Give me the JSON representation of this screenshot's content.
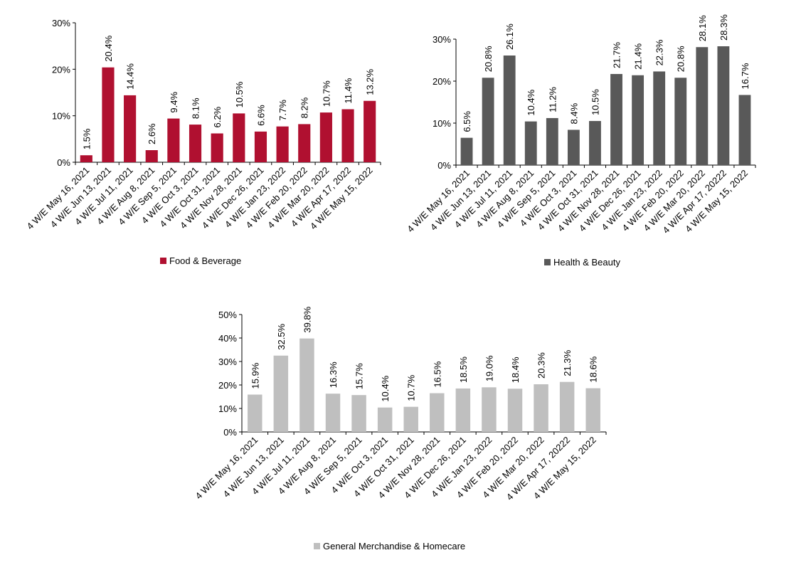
{
  "chart_data": [
    {
      "type": "bar",
      "categories": [
        "4 W/E May 16, 2021",
        "4 W/E Jun 13, 2021",
        "4 W/E Jul 11, 2021",
        "4 W/E Aug 8, 2021",
        "4 W/E Sep 5, 2021",
        "4 W/E Oct 3, 2021",
        "4 W/E Oct 31, 2021",
        "4 W/E Nov 28, 2021",
        "4 W/E Dec 26, 2021",
        "4 W/E Jan 23, 2022",
        "4 W/E Feb 20, 2022",
        "4 W/E Mar 20, 2022",
        "4 W/E Apr 17, 2022",
        "4 W/E May 15, 2022"
      ],
      "series": [
        {
          "name": "Food & Beverage",
          "color": "#b01030",
          "values": [
            1.5,
            20.4,
            14.4,
            2.6,
            9.4,
            8.1,
            6.2,
            10.5,
            6.6,
            7.7,
            8.2,
            10.7,
            11.4,
            13.2
          ],
          "value_labels": [
            "1.5%",
            "20.4%",
            "14.4%",
            "2.6%",
            "9.4%",
            "8.1%",
            "6.2%",
            "10.5%",
            "6.6%",
            "7.7%",
            "8.2%",
            "10.7%",
            "11.4%",
            "13.2%"
          ]
        }
      ],
      "ylim": [
        0,
        30
      ],
      "yticks": [
        {
          "value": 0,
          "label": "0%"
        },
        {
          "value": 10,
          "label": "10%"
        },
        {
          "value": 20,
          "label": "20%"
        },
        {
          "value": 30,
          "label": "30%"
        }
      ]
    },
    {
      "type": "bar",
      "categories": [
        "4 W/E May 16, 2021",
        "4 W/E Jun 13, 2021",
        "4 W/E Jul 11, 2021",
        "4 W/E Aug 8, 2021",
        "4 W/E Sep 5, 2021",
        "4 W/E Oct 3, 2021",
        "4 W/E Oct 31, 2021",
        "4 W/E Nov 28, 2021",
        "4 W/E Dec 26, 2021",
        "4 W/E Jan 23, 2022",
        "4 W/E Feb 20, 2022",
        "4 W/E Mar 20, 2022",
        "4 W/E Apr 17, 20222",
        "4 W/E May 15, 2022"
      ],
      "series": [
        {
          "name": "Health & Beauty",
          "color": "#595959",
          "values": [
            6.5,
            20.8,
            26.1,
            10.4,
            11.2,
            8.4,
            10.5,
            21.7,
            21.4,
            22.3,
            20.8,
            28.1,
            28.3,
            16.7
          ],
          "value_labels": [
            "6.5%",
            "20.8%",
            "26.1%",
            "10.4%",
            "11.2%",
            "8.4%",
            "10.5%",
            "21.7%",
            "21.4%",
            "22.3%",
            "20.8%",
            "28.1%",
            "28.3%",
            "16.7%"
          ]
        }
      ],
      "ylim": [
        0,
        30
      ],
      "yticks": [
        {
          "value": 0,
          "label": "0%"
        },
        {
          "value": 10,
          "label": "10%"
        },
        {
          "value": 20,
          "label": "20%"
        },
        {
          "value": 30,
          "label": "30%"
        }
      ]
    },
    {
      "type": "bar",
      "categories": [
        "4 W/E May 16, 2021",
        "4 W/E Jun 13, 2021",
        "4 W/E Jul 11, 2021",
        "4 W/E Aug 8, 2021",
        "4 W/E Sep 5, 2021",
        "4 W/E Oct 3, 2021",
        "4 W/E Oct 31, 2021",
        "4 W/E Nov 28, 2021",
        "4 W/E Dec 26, 2021",
        "4 W/E Jan 23, 2022",
        "4 W/E Feb 20, 2022",
        "4 W/E Mar 20, 2022",
        "4 W/E Apr 17, 20222",
        "4 W/E May 15, 2022"
      ],
      "series": [
        {
          "name": "General Merchandise & Homecare",
          "color": "#bfbfbf",
          "values": [
            15.9,
            32.5,
            39.8,
            16.3,
            15.7,
            10.4,
            10.7,
            16.5,
            18.5,
            19.0,
            18.4,
            20.3,
            21.3,
            18.6
          ],
          "value_labels": [
            "15.9%",
            "32.5%",
            "39.8%",
            "16.3%",
            "15.7%",
            "10.4%",
            "10.7%",
            "16.5%",
            "18.5%",
            "19.0%",
            "18.4%",
            "20.3%",
            "21.3%",
            "18.6%"
          ]
        }
      ],
      "ylim": [
        0,
        50
      ],
      "yticks": [
        {
          "value": 0,
          "label": "0%"
        },
        {
          "value": 10,
          "label": "10%"
        },
        {
          "value": 20,
          "label": "20%"
        },
        {
          "value": 30,
          "label": "30%"
        },
        {
          "value": 40,
          "label": "40%"
        },
        {
          "value": 50,
          "label": "50%"
        }
      ]
    }
  ]
}
